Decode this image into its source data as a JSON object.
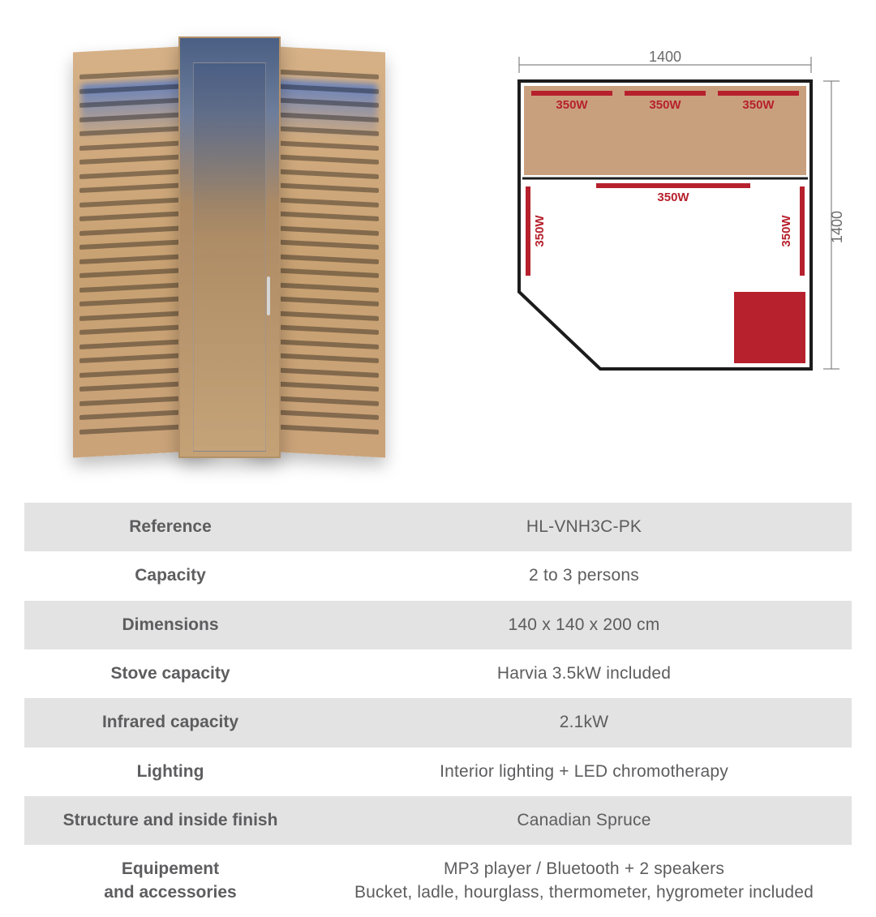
{
  "diagram": {
    "width_label": "1400",
    "height_label": "1400",
    "wall_color": "#1c1c1c",
    "bench_fill": "#c9a07e",
    "heater_fill": "#b6212d",
    "label_color": "#b6212d",
    "dim_color": "#6b6b6b",
    "dim_fontsize": 18,
    "label_fontsize": 15,
    "elements": {
      "top_row": [
        "350W",
        "350W",
        "350W"
      ],
      "mid_center": "350W",
      "left_vert": "350W",
      "right_vert": "350W"
    }
  },
  "spec_colors": {
    "band_bg": "#e3e3e3",
    "text": "#5d5d5f",
    "label_fontsize": 21,
    "value_fontsize": 21
  },
  "specs": [
    {
      "label": "Reference",
      "value": "HL-VNH3C-PK"
    },
    {
      "label": "Capacity",
      "value": "2 to 3 persons"
    },
    {
      "label": "Dimensions",
      "value": "140 x 140 x 200 cm"
    },
    {
      "label": "Stove capacity",
      "value": "Harvia 3.5kW included"
    },
    {
      "label": "Infrared capacity",
      "value": "2.1kW"
    },
    {
      "label": "Lighting",
      "value": "Interior lighting + LED chromotherapy"
    },
    {
      "label": "Structure and inside finish",
      "value": "Canadian Spruce"
    },
    {
      "label": "Equipement\nand accessories",
      "value": "MP3 player / Bluetooth + 2 speakers\nBucket, ladle, hourglass, thermometer, hygrometer included"
    }
  ]
}
